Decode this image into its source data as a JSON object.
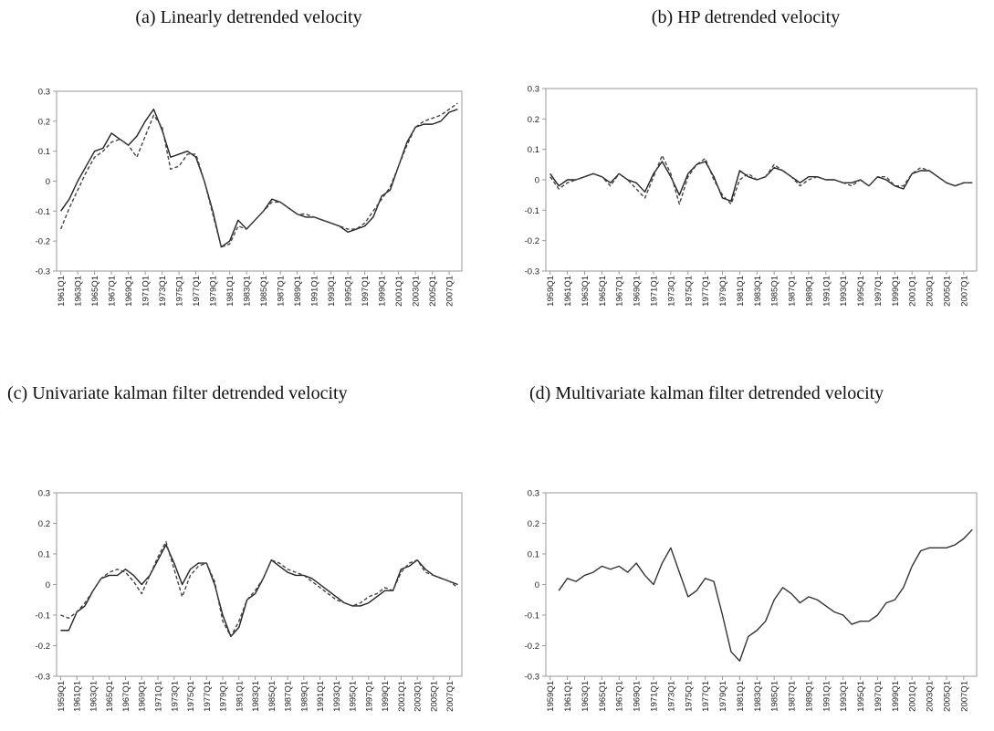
{
  "chart_data": [
    {
      "type": "line",
      "title": "(a) Linearly detrended velocity",
      "categories": [
        "1961Q1",
        null,
        "1963Q1",
        null,
        "1965Q1",
        null,
        "1967Q1",
        null,
        "1969Q1",
        null,
        "1971Q1",
        null,
        "1973Q1",
        null,
        "1975Q1",
        null,
        "1977Q1",
        null,
        "1979Q1",
        null,
        "1981Q1",
        null,
        "1983Q1",
        null,
        "1985Q1",
        null,
        "1987Q1",
        null,
        "1989Q1",
        null,
        "1991Q1",
        null,
        "1993Q1",
        null,
        "1995Q1",
        null,
        "1997Q1",
        null,
        "1999Q1",
        null,
        "2001Q1",
        null,
        "2003Q1",
        null,
        "2005Q1",
        null,
        "2007Q1",
        null
      ],
      "series": [
        {
          "color": "#222222",
          "dashed": false,
          "values": [
            -0.1,
            -0.06,
            0.0,
            0.05,
            0.1,
            0.11,
            0.16,
            0.14,
            0.12,
            0.15,
            0.2,
            0.24,
            0.17,
            0.08,
            0.09,
            0.1,
            0.08,
            0.0,
            -0.1,
            -0.22,
            -0.2,
            -0.13,
            -0.16,
            -0.13,
            -0.1,
            -0.06,
            -0.07,
            -0.09,
            -0.11,
            -0.12,
            -0.12,
            -0.13,
            -0.14,
            -0.15,
            -0.17,
            -0.16,
            -0.15,
            -0.12,
            -0.05,
            -0.03,
            0.05,
            0.13,
            0.18,
            0.19,
            0.19,
            0.2,
            0.23,
            0.24
          ]
        },
        {
          "color": "#444444",
          "dashed": true,
          "values": [
            -0.16,
            -0.09,
            -0.03,
            0.03,
            0.08,
            0.1,
            0.13,
            0.14,
            0.12,
            0.08,
            0.15,
            0.22,
            0.18,
            0.04,
            0.05,
            0.09,
            0.09,
            0.0,
            -0.11,
            -0.22,
            -0.21,
            -0.15,
            -0.16,
            -0.13,
            -0.1,
            -0.07,
            -0.07,
            -0.09,
            -0.11,
            -0.11,
            -0.12,
            -0.13,
            -0.14,
            -0.15,
            -0.16,
            -0.16,
            -0.14,
            -0.1,
            -0.06,
            -0.02,
            0.05,
            0.12,
            0.18,
            0.2,
            0.21,
            0.22,
            0.24,
            0.26
          ]
        }
      ],
      "ylim": [
        -0.3,
        0.3
      ],
      "yticks": [
        -0.3,
        -0.2,
        -0.1,
        0,
        0.1,
        0.2,
        0.3
      ],
      "grid": false
    },
    {
      "type": "line",
      "title": "(b) HP detrended velocity",
      "categories": [
        "1959Q1",
        null,
        "1961Q1",
        null,
        "1963Q1",
        null,
        "1965Q1",
        null,
        "1967Q1",
        null,
        "1969Q1",
        null,
        "1971Q1",
        null,
        "1973Q1",
        null,
        "1975Q1",
        null,
        "1977Q1",
        null,
        "1979Q1",
        null,
        "1981Q1",
        null,
        "1983Q1",
        null,
        "1985Q1",
        null,
        "1987Q1",
        null,
        "1989Q1",
        null,
        "1991Q1",
        null,
        "1993Q1",
        null,
        "1995Q1",
        null,
        "1997Q1",
        null,
        "1999Q1",
        null,
        "2001Q1",
        null,
        "2003Q1",
        null,
        "2005Q1",
        null,
        "2007Q1",
        null
      ],
      "series": [
        {
          "color": "#222222",
          "dashed": false,
          "values": [
            0.02,
            -0.02,
            0.0,
            0.0,
            0.01,
            0.02,
            0.01,
            -0.01,
            0.02,
            0.0,
            -0.01,
            -0.04,
            0.02,
            0.06,
            0.01,
            -0.05,
            0.02,
            0.05,
            0.06,
            0.01,
            -0.06,
            -0.07,
            0.03,
            0.01,
            0.0,
            0.01,
            0.04,
            0.03,
            0.01,
            -0.01,
            0.01,
            0.01,
            0.0,
            0.0,
            -0.01,
            -0.01,
            0.0,
            -0.02,
            0.01,
            0.0,
            -0.02,
            -0.03,
            0.02,
            0.03,
            0.03,
            0.01,
            -0.01,
            -0.02,
            -0.01,
            -0.01
          ]
        },
        {
          "color": "#444444",
          "dashed": true,
          "values": [
            0.01,
            -0.03,
            -0.01,
            0.0,
            0.01,
            0.02,
            0.01,
            -0.02,
            0.02,
            0.0,
            -0.03,
            -0.06,
            0.01,
            0.08,
            0.02,
            -0.08,
            0.01,
            0.05,
            0.07,
            0.0,
            -0.05,
            -0.08,
            0.0,
            0.02,
            0.0,
            0.01,
            0.05,
            0.03,
            0.01,
            -0.02,
            0.0,
            0.01,
            0.0,
            0.0,
            -0.01,
            -0.02,
            0.0,
            -0.02,
            0.01,
            0.01,
            -0.02,
            -0.02,
            0.02,
            0.04,
            0.03,
            0.01,
            -0.01,
            -0.02,
            -0.01,
            -0.01
          ]
        }
      ],
      "ylim": [
        -0.3,
        0.3
      ],
      "yticks": [
        -0.3,
        -0.2,
        -0.1,
        0,
        0.1,
        0.2,
        0.3
      ],
      "grid": false
    },
    {
      "type": "line",
      "title": "(c) Univariate kalman filter detrended velocity",
      "categories": [
        "1959Q1",
        null,
        "1961Q1",
        null,
        "1963Q1",
        null,
        "1965Q1",
        null,
        "1967Q1",
        null,
        "1969Q1",
        null,
        "1971Q1",
        null,
        "1973Q1",
        null,
        "1975Q1",
        null,
        "1977Q1",
        null,
        "1979Q1",
        null,
        "1981Q1",
        null,
        "1983Q1",
        null,
        "1985Q1",
        null,
        "1987Q1",
        null,
        "1989Q1",
        null,
        "1991Q1",
        null,
        "1993Q1",
        null,
        "1995Q1",
        null,
        "1997Q1",
        null,
        "1999Q1",
        null,
        "2001Q1",
        null,
        "2003Q1",
        null,
        "2005Q1",
        null,
        "2007Q1",
        null
      ],
      "series": [
        {
          "color": "#222222",
          "dashed": false,
          "values": [
            -0.15,
            -0.15,
            -0.09,
            -0.07,
            -0.02,
            0.02,
            0.03,
            0.03,
            0.05,
            0.03,
            0.0,
            0.03,
            0.08,
            0.13,
            0.07,
            0.0,
            0.05,
            0.07,
            0.07,
            0.0,
            -0.1,
            -0.17,
            -0.14,
            -0.05,
            -0.03,
            0.02,
            0.08,
            0.06,
            0.04,
            0.03,
            0.03,
            0.02,
            0.0,
            -0.02,
            -0.04,
            -0.06,
            -0.07,
            -0.07,
            -0.06,
            -0.04,
            -0.02,
            -0.02,
            0.05,
            0.06,
            0.08,
            0.05,
            0.03,
            0.02,
            0.01,
            0.0
          ]
        },
        {
          "color": "#444444",
          "dashed": true,
          "values": [
            -0.1,
            -0.11,
            -0.09,
            -0.06,
            -0.02,
            0.02,
            0.04,
            0.05,
            0.04,
            0.01,
            -0.03,
            0.03,
            0.09,
            0.14,
            0.05,
            -0.04,
            0.03,
            0.06,
            0.07,
            0.01,
            -0.12,
            -0.17,
            -0.12,
            -0.05,
            -0.02,
            0.02,
            0.08,
            0.07,
            0.05,
            0.04,
            0.03,
            0.01,
            -0.01,
            -0.03,
            -0.05,
            -0.06,
            -0.07,
            -0.06,
            -0.04,
            -0.03,
            -0.01,
            -0.02,
            0.04,
            0.07,
            0.08,
            0.04,
            0.03,
            0.02,
            0.01,
            -0.01
          ]
        }
      ],
      "ylim": [
        -0.3,
        0.3
      ],
      "yticks": [
        -0.3,
        -0.2,
        -0.1,
        0,
        0.1,
        0.2,
        0.3
      ],
      "grid": false
    },
    {
      "type": "line",
      "title": "(d) Multivariate kalman filter detrended velocity",
      "categories": [
        "1959Q1",
        null,
        "1961Q1",
        null,
        "1963Q1",
        null,
        "1965Q1",
        null,
        "1967Q1",
        null,
        "1969Q1",
        null,
        "1971Q1",
        null,
        "1973Q1",
        null,
        "1975Q1",
        null,
        "1977Q1",
        null,
        "1979Q1",
        null,
        "1981Q1",
        null,
        "1983Q1",
        null,
        "1985Q1",
        null,
        "1987Q1",
        null,
        "1989Q1",
        null,
        "1991Q1",
        null,
        "1993Q1",
        null,
        "1995Q1",
        null,
        "1997Q1",
        null,
        "1999Q1",
        null,
        "2001Q1",
        null,
        "2003Q1",
        null,
        "2005Q1",
        null,
        "2007Q1",
        null
      ],
      "series": [
        {
          "color": "#333333",
          "dashed": false,
          "values": [
            null,
            -0.02,
            0.02,
            0.01,
            0.03,
            0.04,
            0.06,
            0.05,
            0.06,
            0.04,
            0.07,
            0.03,
            0.0,
            0.07,
            0.12,
            0.04,
            -0.04,
            -0.02,
            0.02,
            0.01,
            -0.1,
            -0.22,
            -0.25,
            -0.17,
            -0.15,
            -0.12,
            -0.05,
            -0.01,
            -0.03,
            -0.06,
            -0.04,
            -0.05,
            -0.07,
            -0.09,
            -0.1,
            -0.13,
            -0.12,
            -0.12,
            -0.1,
            -0.06,
            -0.05,
            -0.01,
            0.06,
            0.11,
            0.12,
            0.12,
            0.12,
            0.13,
            0.15,
            0.18
          ]
        }
      ],
      "ylim": [
        -0.3,
        0.3
      ],
      "yticks": [
        -0.3,
        -0.2,
        -0.1,
        0,
        0.1,
        0.2,
        0.3
      ],
      "grid": false
    }
  ]
}
